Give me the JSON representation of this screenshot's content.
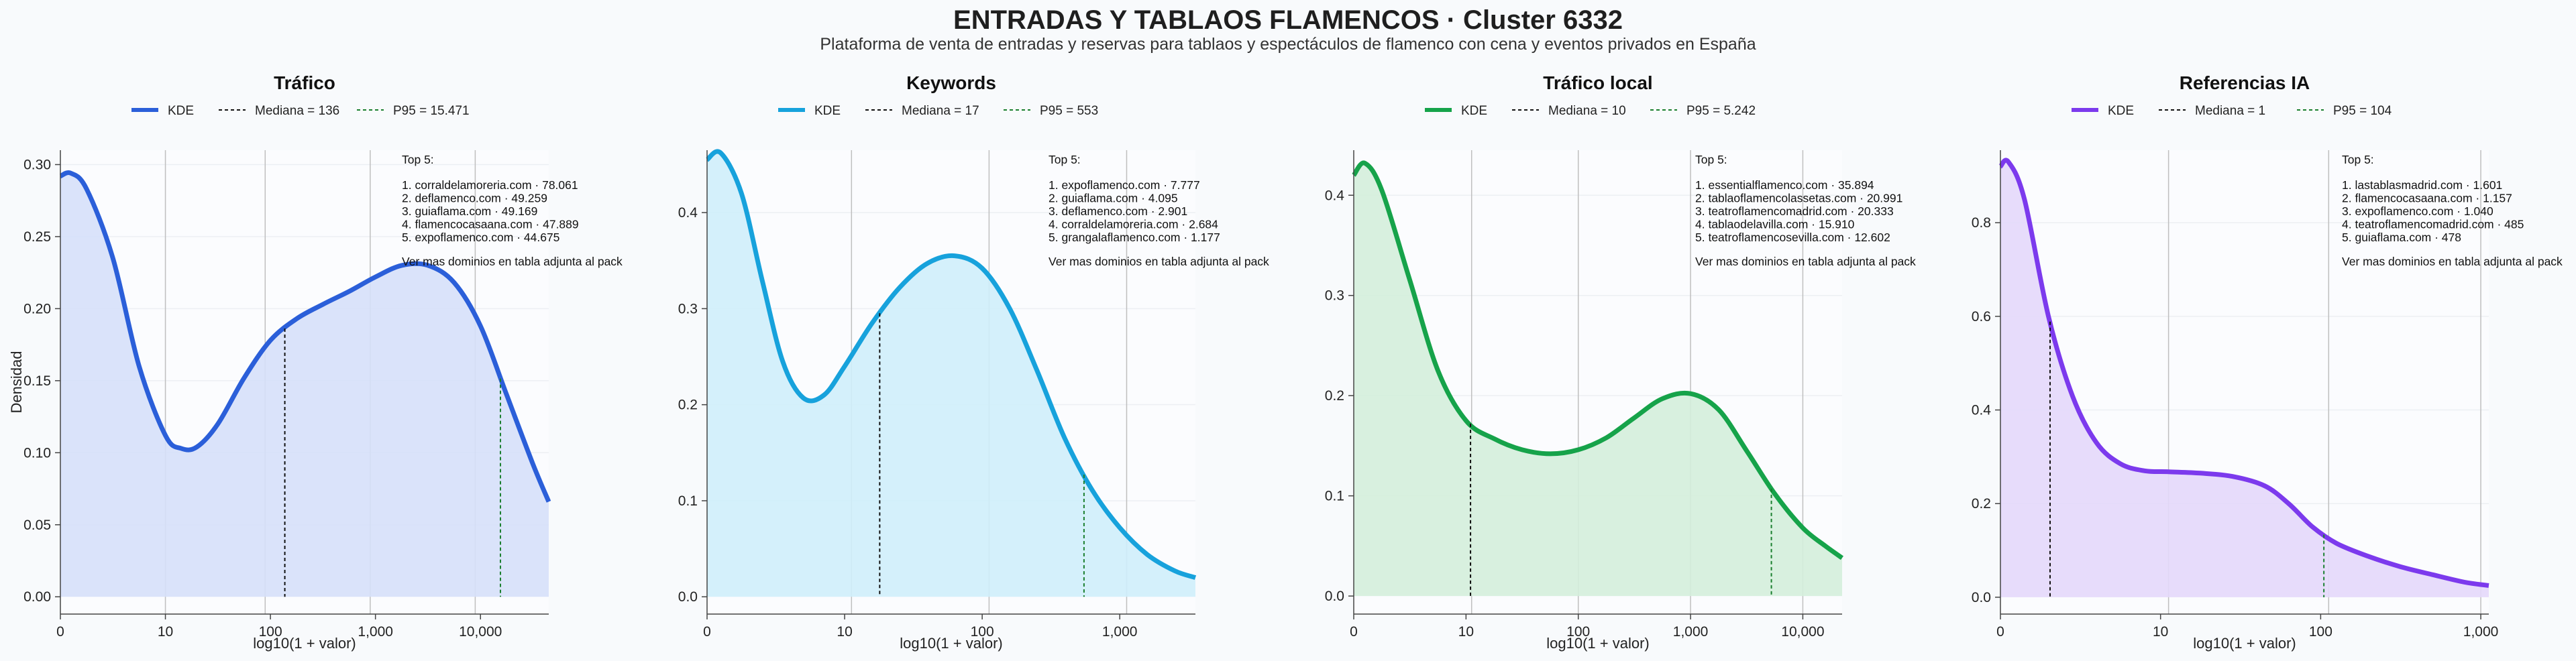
{
  "header": {
    "title": "ENTRADAS Y TABLAOS FLAMENCOS · Cluster 6332",
    "subtitle": "Plataforma de venta de entradas y reservas para tablaos y espectáculos de flamenco con cena y eventos privados en España"
  },
  "shared": {
    "ylabel": "Densidad",
    "xlabel": "log10(1 + valor)",
    "legend_kde": "KDE",
    "top_heading": "Top 5:",
    "top_footer": "Ver mas dominios en tabla adjunta al pack",
    "median_color": "#111111",
    "p95_color": "#1a7f2e"
  },
  "chart_data": [
    {
      "type": "area",
      "title": "Tráfico",
      "color": "#2b5fd9",
      "fill": "#d6e0fa",
      "xlabel": "log10(1 + valor)",
      "ylabel": "Densidad",
      "xlim": [
        0,
        4.65
      ],
      "ylim": [
        -0.012,
        0.31
      ],
      "xticks": [
        0,
        1,
        2,
        3,
        4
      ],
      "xtick_labels": [
        "0",
        "10",
        "100",
        "1,000",
        "10,000"
      ],
      "yticks": [
        0,
        0.05,
        0.1,
        0.15,
        0.2,
        0.25,
        0.3
      ],
      "ytick_labels": [
        "0.00",
        "0.05",
        "0.10",
        "0.15",
        "0.20",
        "0.25",
        "0.30"
      ],
      "vgrid": [
        1,
        1.95,
        2.95,
        3.95
      ],
      "legend": {
        "median_label": "Mediana = 136",
        "p95_label": "P95 = 15.471"
      },
      "median_x": 2.137,
      "p95_x": 4.19,
      "kde": {
        "x": [
          0,
          0.1,
          0.25,
          0.5,
          0.75,
          1.0,
          1.15,
          1.3,
          1.5,
          1.75,
          2.0,
          2.25,
          2.5,
          2.75,
          3.0,
          3.25,
          3.5,
          3.75,
          4.0,
          4.25,
          4.5,
          4.65
        ],
        "y": [
          0.292,
          0.294,
          0.283,
          0.235,
          0.16,
          0.112,
          0.103,
          0.104,
          0.12,
          0.152,
          0.178,
          0.193,
          0.203,
          0.212,
          0.222,
          0.23,
          0.23,
          0.218,
          0.188,
          0.14,
          0.092,
          0.066
        ]
      },
      "top5": [
        "1. corraldelamoreria.com · 78.061",
        "2. deflamenco.com · 49.259",
        "3. guiaflama.com · 49.169",
        "4. flamencocasaana.com · 47.889",
        "5. expoflamenco.com · 44.675"
      ]
    },
    {
      "type": "area",
      "title": "Keywords",
      "color": "#17a2dc",
      "fill": "#cfeefb",
      "xlabel": "log10(1 + valor)",
      "ylabel": "",
      "xlim": [
        0,
        3.55
      ],
      "ylim": [
        -0.018,
        0.465
      ],
      "xticks": [
        0,
        1,
        2,
        3
      ],
      "xtick_labels": [
        "0",
        "10",
        "100",
        "1,000"
      ],
      "yticks": [
        0,
        0.1,
        0.2,
        0.3,
        0.4
      ],
      "ytick_labels": [
        "0.0",
        "0.1",
        "0.2",
        "0.3",
        "0.4"
      ],
      "vgrid": [
        1.05,
        2.05,
        3.05
      ],
      "legend": {
        "median_label": "Mediana = 17",
        "p95_label": "P95 = 553"
      },
      "median_x": 1.255,
      "p95_x": 2.74,
      "kde": {
        "x": [
          0,
          0.1,
          0.25,
          0.4,
          0.55,
          0.7,
          0.85,
          1.0,
          1.2,
          1.4,
          1.6,
          1.8,
          2.0,
          2.2,
          2.4,
          2.6,
          2.8,
          3.0,
          3.2,
          3.4,
          3.55
        ],
        "y": [
          0.455,
          0.462,
          0.42,
          0.33,
          0.245,
          0.207,
          0.21,
          0.24,
          0.285,
          0.322,
          0.347,
          0.355,
          0.342,
          0.3,
          0.235,
          0.165,
          0.111,
          0.072,
          0.044,
          0.027,
          0.02
        ]
      },
      "top5": [
        "1. expoflamenco.com · 7.777",
        "2. guiaflama.com · 4.095",
        "3. deflamenco.com · 2.901",
        "4. corraldelamoreria.com · 2.684",
        "5. grangalaflamenco.com · 1.177"
      ]
    },
    {
      "type": "area",
      "title": "Tráfico local",
      "color": "#16a34a",
      "fill": "#d4eedc",
      "xlabel": "log10(1 + valor)",
      "ylabel": "",
      "xlim": [
        0,
        4.35
      ],
      "ylim": [
        -0.018,
        0.445
      ],
      "xticks": [
        0,
        1,
        2,
        3,
        4
      ],
      "xtick_labels": [
        "0",
        "10",
        "100",
        "1,000",
        "10,000"
      ],
      "yticks": [
        0,
        0.1,
        0.2,
        0.3,
        0.4
      ],
      "ytick_labels": [
        "0.0",
        "0.1",
        "0.2",
        "0.3",
        "0.4"
      ],
      "vgrid": [
        1.05,
        2.0,
        3.0,
        4.0
      ],
      "legend": {
        "median_label": "Mediana = 10",
        "p95_label": "P95 = 5.242"
      },
      "median_x": 1.04,
      "p95_x": 3.72,
      "kde": {
        "x": [
          0,
          0.1,
          0.25,
          0.5,
          0.75,
          1.0,
          1.25,
          1.5,
          1.75,
          2.0,
          2.25,
          2.5,
          2.75,
          3.0,
          3.25,
          3.5,
          3.75,
          4.0,
          4.2,
          4.35
        ],
        "y": [
          0.42,
          0.432,
          0.405,
          0.315,
          0.225,
          0.175,
          0.157,
          0.146,
          0.142,
          0.146,
          0.158,
          0.178,
          0.197,
          0.202,
          0.186,
          0.145,
          0.102,
          0.068,
          0.05,
          0.038
        ]
      },
      "top5": [
        "1. essentialflamenco.com · 35.894",
        "2. tablaoflamencolassetas.com · 20.991",
        "3. teatroflamencomadrid.com · 20.333",
        "4. tablaodelavilla.com · 15.910",
        "5. teatroflamencosevilla.com · 12.602"
      ]
    },
    {
      "type": "area",
      "title": "Referencias IA",
      "color": "#7c3aed",
      "fill": "#e4d8fb",
      "xlabel": "log10(1 + valor)",
      "ylabel": "",
      "xlim": [
        0,
        3.05
      ],
      "ylim": [
        -0.036,
        0.955
      ],
      "xticks": [
        0,
        1,
        2,
        3
      ],
      "xtick_labels": [
        "0",
        "10",
        "100",
        "1,000"
      ],
      "yticks": [
        0,
        0.2,
        0.4,
        0.6,
        0.8
      ],
      "ytick_labels": [
        "0.0",
        "0.2",
        "0.4",
        "0.6",
        "0.8"
      ],
      "vgrid": [
        1.05,
        2.05,
        3.0
      ],
      "legend": {
        "median_label": "Mediana = 1",
        "p95_label": "P95 = 104"
      },
      "median_x": 0.31,
      "p95_x": 2.02,
      "kde": {
        "x": [
          0,
          0.05,
          0.15,
          0.3,
          0.45,
          0.6,
          0.75,
          0.9,
          1.05,
          1.25,
          1.45,
          1.65,
          1.8,
          1.95,
          2.1,
          2.3,
          2.5,
          2.7,
          2.9,
          3.05
        ],
        "y": [
          0.92,
          0.93,
          0.85,
          0.6,
          0.43,
          0.33,
          0.285,
          0.27,
          0.268,
          0.265,
          0.258,
          0.238,
          0.2,
          0.15,
          0.115,
          0.087,
          0.065,
          0.048,
          0.032,
          0.025
        ]
      },
      "top5": [
        "1. lastablasmadrid.com · 1.601",
        "2. flamencocasaana.com · 1.157",
        "3. expoflamenco.com · 1.040",
        "4. teatroflamencomadrid.com · 485",
        "5. guiaflama.com · 478"
      ]
    }
  ]
}
